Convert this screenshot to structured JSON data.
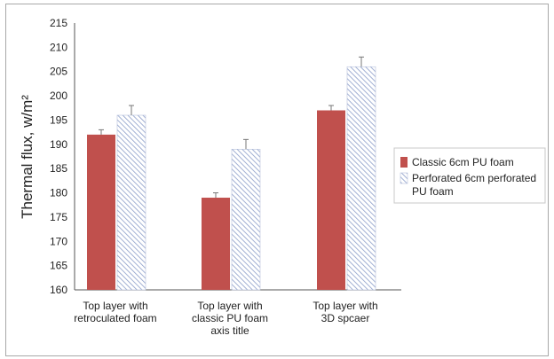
{
  "chart_data": {
    "type": "bar",
    "title": "",
    "xlabel": "",
    "ylabel": "Thermal flux, w/m²",
    "ylim": [
      160,
      215
    ],
    "yticks": [
      160,
      165,
      170,
      175,
      180,
      185,
      190,
      195,
      200,
      205,
      210,
      215
    ],
    "categories": [
      [
        "Top layer with",
        "retroculated foam"
      ],
      [
        "Top layer with",
        "classic PU foam",
        "axis title"
      ],
      [
        "Top layer with",
        "3D spcaer"
      ]
    ],
    "series": [
      {
        "name": "Classic 6cm PU foam",
        "values": [
          192,
          179,
          197
        ],
        "errors": [
          1,
          1,
          1
        ],
        "color": "#c0504d",
        "pattern": "solid"
      },
      {
        "name": "Perforated 6cm perforated PU foam",
        "values": [
          196,
          189,
          206
        ],
        "errors": [
          2,
          2,
          2
        ],
        "color": "#8a9cc8",
        "pattern": "diagonal-hatch"
      }
    ],
    "legend": {
      "placement": "right",
      "entries": [
        [
          "Classic 6cm PU foam"
        ],
        [
          "Perforated 6cm perforated",
          "PU foam"
        ]
      ]
    },
    "grid": false
  }
}
